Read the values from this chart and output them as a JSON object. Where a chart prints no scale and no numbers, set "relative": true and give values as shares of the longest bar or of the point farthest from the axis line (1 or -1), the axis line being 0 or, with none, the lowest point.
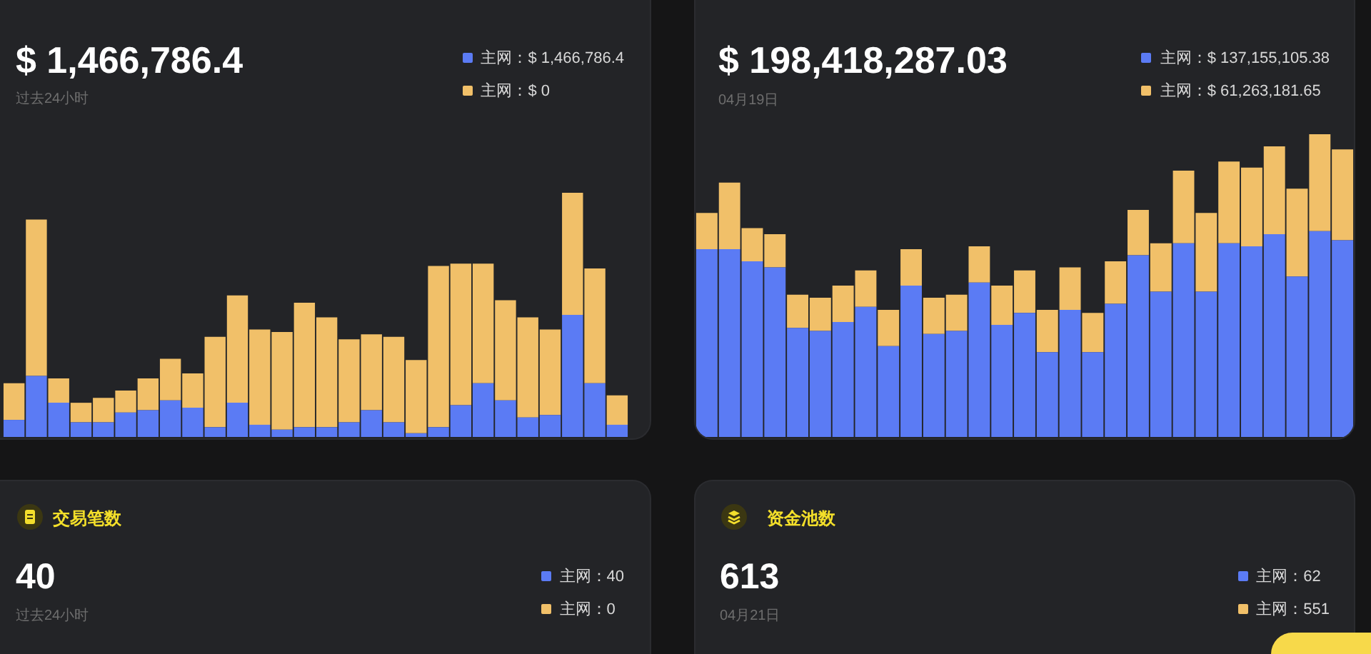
{
  "chart_data": [
    {
      "type": "bar",
      "title": "$ 1,466,786.4",
      "subtitle": "过去24小时",
      "categories": [
        null,
        null,
        null,
        null,
        null,
        null,
        null,
        null,
        null,
        null,
        null,
        null,
        null,
        null,
        null,
        null,
        null,
        null,
        null,
        null,
        null,
        null,
        null,
        null,
        null,
        null,
        null,
        null
      ],
      "stacked": true,
      "relative": true,
      "legend": "top right",
      "series": [
        {
          "name": "主网：$ 1,466,786.4",
          "color": "#5b7bf4",
          "values": [
            0.07,
            0.25,
            0.14,
            0.06,
            0.06,
            0.1,
            0.11,
            0.15,
            0.12,
            0.04,
            0.14,
            0.05,
            0.03,
            0.04,
            0.04,
            0.06,
            0.11,
            0.06,
            0.015,
            0.04,
            0.13,
            0.22,
            0.15,
            0.08,
            0.09,
            0.5,
            0.22,
            0.05
          ]
        },
        {
          "name": "主网：$ 0",
          "color": "#f1c069",
          "values": [
            0.15,
            0.64,
            0.1,
            0.08,
            0.1,
            0.09,
            0.13,
            0.17,
            0.14,
            0.37,
            0.44,
            0.39,
            0.4,
            0.51,
            0.45,
            0.34,
            0.31,
            0.35,
            0.3,
            0.66,
            0.58,
            0.49,
            0.41,
            0.41,
            0.35,
            0.5,
            0.47,
            0.12
          ]
        }
      ]
    },
    {
      "type": "bar",
      "title": "$ 198,418,287.03",
      "subtitle": "04月19日",
      "categories": [
        null,
        null,
        null,
        null,
        null,
        null,
        null,
        null,
        null,
        null,
        null,
        null,
        null,
        null,
        null,
        null,
        null,
        null,
        null,
        null,
        null,
        null,
        null,
        null,
        null,
        null,
        null,
        null,
        null
      ],
      "stacked": true,
      "relative": true,
      "legend": "top right",
      "series": [
        {
          "name": "主网：$ 137,155,105.38",
          "color": "#5b7bf4",
          "values": [
            0.62,
            0.62,
            0.58,
            0.56,
            0.36,
            0.35,
            0.38,
            0.43,
            0.3,
            0.5,
            0.34,
            0.35,
            0.51,
            0.37,
            0.41,
            0.28,
            0.42,
            0.28,
            0.44,
            0.6,
            0.48,
            0.64,
            0.48,
            0.64,
            0.63,
            0.67,
            0.53,
            0.68,
            0.65
          ]
        },
        {
          "name": "主网：$ 61,263,181.65",
          "color": "#f1c069",
          "values": [
            0.12,
            0.22,
            0.11,
            0.11,
            0.11,
            0.11,
            0.12,
            0.12,
            0.12,
            0.12,
            0.12,
            0.12,
            0.12,
            0.13,
            0.14,
            0.14,
            0.14,
            0.13,
            0.14,
            0.15,
            0.16,
            0.24,
            0.26,
            0.27,
            0.26,
            0.29,
            0.29,
            0.32,
            0.3
          ]
        }
      ]
    },
    {
      "type": "other",
      "title": "交易笔数",
      "annotations": [
        "40",
        "过去24小时",
        "主网：40",
        "主网：0"
      ]
    },
    {
      "type": "other",
      "title": "资金池数",
      "annotations": [
        "613",
        "04月21日",
        "主网：62",
        "主网：551"
      ]
    }
  ]
}
